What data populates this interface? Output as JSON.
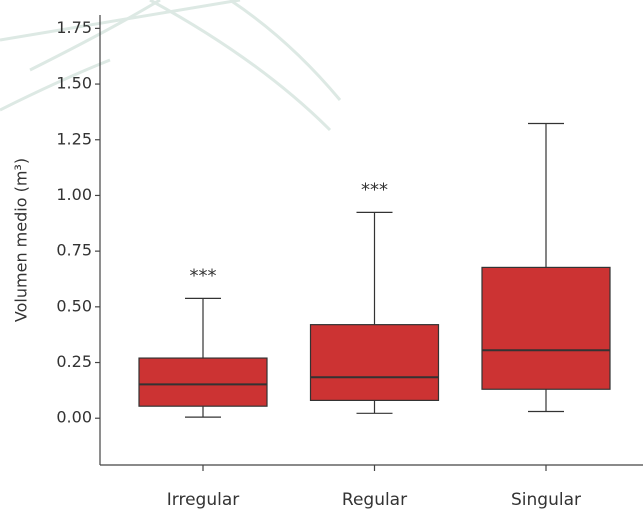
{
  "chart_data": {
    "type": "box",
    "y_label": "Volumen medio (m³)",
    "categories": [
      "Irregular",
      "Regular",
      "Singular"
    ],
    "min": [
      0.005,
      0.022,
      0.03
    ],
    "q1": [
      0.054,
      0.08,
      0.13
    ],
    "median": [
      0.152,
      0.184,
      0.305
    ],
    "q3": [
      0.27,
      0.42,
      0.677
    ],
    "max": [
      0.538,
      0.924,
      1.323
    ],
    "significance": [
      "***",
      "***",
      null
    ],
    "color": "#cc3333",
    "ylim": [
      -0.21,
      1.81
    ],
    "yticks": [
      {
        "value": 0,
        "label": "0.00"
      },
      0.25,
      {
        "value": 0.5,
        "label": "0.50"
      },
      0.75,
      {
        "value": 1,
        "label": "1.00"
      },
      1.25,
      {
        "value": 1.5,
        "label": "1.50"
      },
      1.75
    ],
    "grid": false
  }
}
